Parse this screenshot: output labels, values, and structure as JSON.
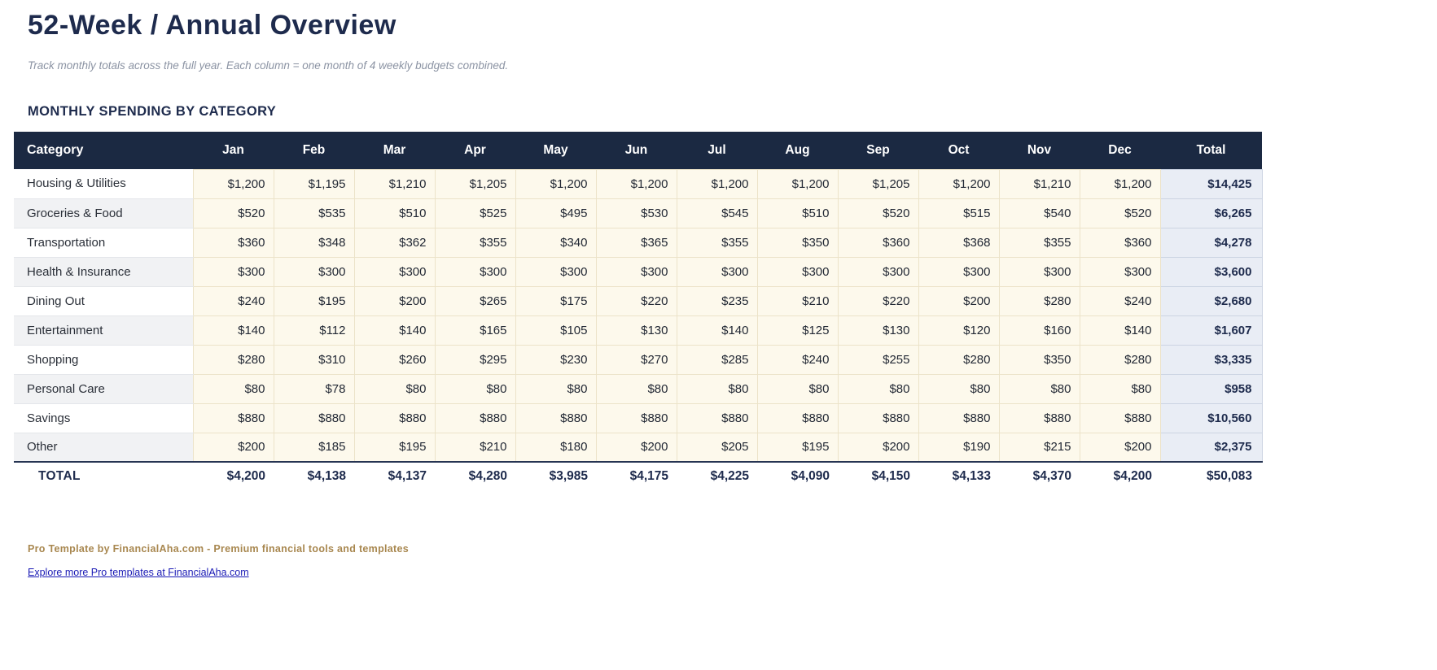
{
  "page": {
    "title": "52-Week / Annual Overview",
    "subtitle": "Track monthly totals across the full year. Each column = one month of 4 weekly budgets combined.",
    "section_title": "MONTHLY SPENDING BY CATEGORY"
  },
  "table": {
    "columns": [
      "Category",
      "Jan",
      "Feb",
      "Mar",
      "Apr",
      "May",
      "Jun",
      "Jul",
      "Aug",
      "Sep",
      "Oct",
      "Nov",
      "Dec",
      "Total"
    ],
    "rows": [
      {
        "category": "Housing & Utilities",
        "values": [
          "$1,200",
          "$1,195",
          "$1,210",
          "$1,205",
          "$1,200",
          "$1,200",
          "$1,200",
          "$1,200",
          "$1,205",
          "$1,200",
          "$1,210",
          "$1,200"
        ],
        "total": "$14,425"
      },
      {
        "category": "Groceries & Food",
        "values": [
          "$520",
          "$535",
          "$510",
          "$525",
          "$495",
          "$530",
          "$545",
          "$510",
          "$520",
          "$515",
          "$540",
          "$520"
        ],
        "total": "$6,265"
      },
      {
        "category": "Transportation",
        "values": [
          "$360",
          "$348",
          "$362",
          "$355",
          "$340",
          "$365",
          "$355",
          "$350",
          "$360",
          "$368",
          "$355",
          "$360"
        ],
        "total": "$4,278"
      },
      {
        "category": "Health & Insurance",
        "values": [
          "$300",
          "$300",
          "$300",
          "$300",
          "$300",
          "$300",
          "$300",
          "$300",
          "$300",
          "$300",
          "$300",
          "$300"
        ],
        "total": "$3,600"
      },
      {
        "category": "Dining Out",
        "values": [
          "$240",
          "$195",
          "$200",
          "$265",
          "$175",
          "$220",
          "$235",
          "$210",
          "$220",
          "$200",
          "$280",
          "$240"
        ],
        "total": "$2,680"
      },
      {
        "category": "Entertainment",
        "values": [
          "$140",
          "$112",
          "$140",
          "$165",
          "$105",
          "$130",
          "$140",
          "$125",
          "$130",
          "$120",
          "$160",
          "$140"
        ],
        "total": "$1,607"
      },
      {
        "category": "Shopping",
        "values": [
          "$280",
          "$310",
          "$260",
          "$295",
          "$230",
          "$270",
          "$285",
          "$240",
          "$255",
          "$280",
          "$350",
          "$280"
        ],
        "total": "$3,335"
      },
      {
        "category": "Personal Care",
        "values": [
          "$80",
          "$78",
          "$80",
          "$80",
          "$80",
          "$80",
          "$80",
          "$80",
          "$80",
          "$80",
          "$80",
          "$80"
        ],
        "total": "$958"
      },
      {
        "category": "Savings",
        "values": [
          "$880",
          "$880",
          "$880",
          "$880",
          "$880",
          "$880",
          "$880",
          "$880",
          "$880",
          "$880",
          "$880",
          "$880"
        ],
        "total": "$10,560"
      },
      {
        "category": "Other",
        "values": [
          "$200",
          "$185",
          "$195",
          "$210",
          "$180",
          "$200",
          "$205",
          "$195",
          "$200",
          "$190",
          "$215",
          "$200"
        ],
        "total": "$2,375"
      }
    ],
    "total_row": {
      "label": "TOTAL",
      "values": [
        "$4,200",
        "$4,138",
        "$4,137",
        "$4,280",
        "$3,985",
        "$4,175",
        "$4,225",
        "$4,090",
        "$4,150",
        "$4,133",
        "$4,370",
        "$4,200"
      ],
      "total": "$50,083"
    }
  },
  "footer": {
    "branding": "Pro Template by FinancialAha.com - Premium financial tools and templates",
    "link": "Explore more Pro templates at FinancialAha.com"
  },
  "colors": {
    "header_bg": "#1b2942",
    "header_text": "#ffffff",
    "cell_bg": "#fdf9ec",
    "cell_border": "#ece3c9",
    "total_col_bg": "#e9edf5",
    "total_col_border": "#ccd4e2",
    "category_alt_bg": "#f1f2f4",
    "title_color": "#1e2b4d",
    "subtitle_color": "#8b93a3",
    "brand_color": "#a8874f",
    "link_color": "#1a1ab5"
  }
}
